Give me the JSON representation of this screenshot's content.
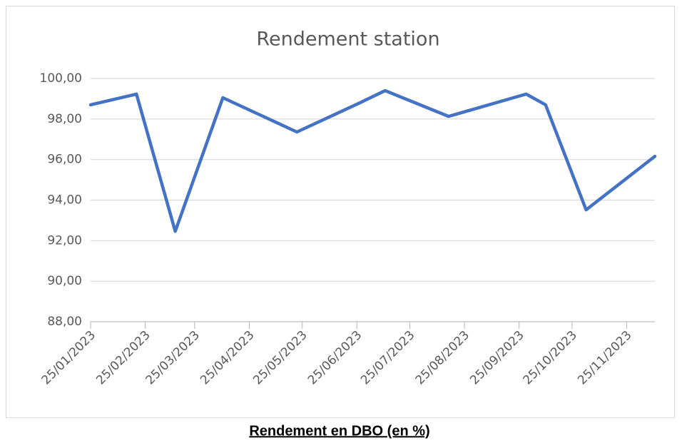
{
  "chart_data": {
    "type": "line",
    "title": "Rendement station",
    "caption": "Rendement en DBO (en %)",
    "x": [
      "2023-01-25",
      "2023-02-20",
      "2023-03-14",
      "2023-04-10",
      "2023-05-22",
      "2023-06-26",
      "2023-07-11",
      "2023-08-16",
      "2023-09-29",
      "2023-10-10",
      "2023-11-02",
      "2023-12-11"
    ],
    "series": [
      {
        "name": "Rendement",
        "color": "#4472c4",
        "values": [
          98.7,
          99.23,
          92.46,
          99.05,
          97.36,
          98.77,
          99.4,
          98.13,
          99.23,
          98.7,
          93.52,
          96.16
        ]
      }
    ],
    "xlim": [
      "2023-01-25",
      "2023-12-11"
    ],
    "xticks": [
      {
        "value": "2023-01-25",
        "label": "25/01/2023"
      },
      {
        "value": "2023-02-25",
        "label": "25/02/2023"
      },
      {
        "value": "2023-03-25",
        "label": "25/03/2023"
      },
      {
        "value": "2023-04-25",
        "label": "25/04/2023"
      },
      {
        "value": "2023-05-25",
        "label": "25/05/2023"
      },
      {
        "value": "2023-06-25",
        "label": "25/06/2023"
      },
      {
        "value": "2023-07-25",
        "label": "25/07/2023"
      },
      {
        "value": "2023-08-25",
        "label": "25/08/2023"
      },
      {
        "value": "2023-09-25",
        "label": "25/09/2023"
      },
      {
        "value": "2023-10-25",
        "label": "25/10/2023"
      },
      {
        "value": "2023-11-25",
        "label": "25/11/2023"
      }
    ],
    "ylim": [
      88,
      100
    ],
    "yticks": [
      {
        "value": 88,
        "label": "88,00"
      },
      {
        "value": 90,
        "label": "90,00"
      },
      {
        "value": 92,
        "label": "92,00"
      },
      {
        "value": 94,
        "label": "94,00"
      },
      {
        "value": 96,
        "label": "96,00"
      },
      {
        "value": 98,
        "label": "98,00"
      },
      {
        "value": 100,
        "label": "100,00"
      }
    ],
    "grid": true
  }
}
